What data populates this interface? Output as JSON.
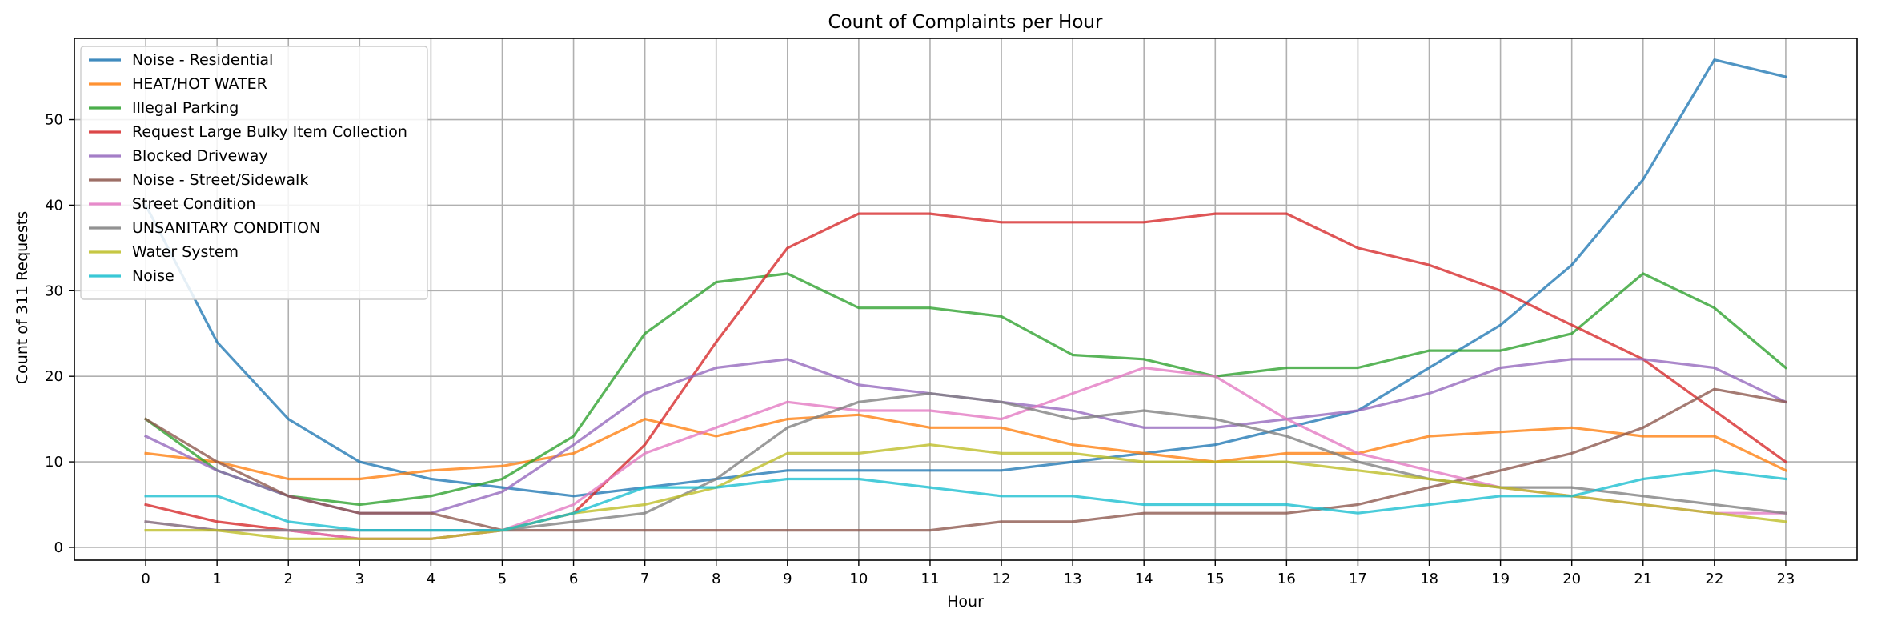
{
  "chart_data": {
    "type": "line",
    "title": "Count of Complaints per Hour",
    "xlabel": "Hour",
    "ylabel": "Count of 311 Requests",
    "x": [
      0,
      1,
      2,
      3,
      4,
      5,
      6,
      7,
      8,
      9,
      10,
      11,
      12,
      13,
      14,
      15,
      16,
      17,
      18,
      19,
      20,
      21,
      22,
      23
    ],
    "xlim": [
      -1,
      24
    ],
    "ylim": [
      -1.5,
      59.5
    ],
    "yticks": [
      0,
      10,
      20,
      30,
      40,
      50
    ],
    "grid": true,
    "legend_position": "top-left",
    "series": [
      {
        "name": "Noise - Residential",
        "color": "#1f77b4",
        "values": [
          40,
          24,
          15,
          10,
          8,
          7,
          6,
          7,
          8,
          9,
          9,
          9,
          9,
          10,
          11,
          12,
          14,
          16,
          21,
          26,
          33,
          43,
          57,
          55
        ]
      },
      {
        "name": "HEAT/HOT WATER",
        "color": "#ff7f0e",
        "values": [
          11,
          10,
          8,
          8,
          9,
          9.5,
          11,
          15,
          13,
          15,
          15.5,
          14,
          14,
          12,
          11,
          10,
          11,
          11,
          13,
          13.5,
          14,
          13,
          13,
          9
        ]
      },
      {
        "name": "Illegal Parking",
        "color": "#2ca02c",
        "values": [
          15,
          9,
          6,
          5,
          6,
          8,
          13,
          25,
          31,
          32,
          28,
          28,
          27,
          22.5,
          22,
          20,
          21,
          21,
          23,
          23,
          25,
          32,
          28,
          21
        ]
      },
      {
        "name": "Request Large Bulky Item Collection",
        "color": "#d62728",
        "values": [
          5,
          3,
          2,
          1,
          1,
          2,
          4,
          12,
          24,
          35,
          39,
          39,
          38,
          38,
          38,
          39,
          39,
          35,
          33,
          30,
          26,
          22,
          16,
          10
        ]
      },
      {
        "name": "Blocked Driveway",
        "color": "#9467bd",
        "values": [
          13,
          9,
          6,
          4,
          4,
          6.5,
          12,
          18,
          21,
          22,
          19,
          18,
          17,
          16,
          14,
          14,
          15,
          16,
          18,
          21,
          22,
          22,
          21,
          17
        ]
      },
      {
        "name": "Noise - Street/Sidewalk",
        "color": "#8c564b",
        "values": [
          15,
          10,
          6,
          4,
          4,
          2,
          2,
          2,
          2,
          2,
          2,
          2,
          3,
          3,
          4,
          4,
          4,
          5,
          7,
          9,
          11,
          14,
          18.5,
          17
        ]
      },
      {
        "name": "Street Condition",
        "color": "#e377c2",
        "values": [
          3,
          2,
          2,
          1,
          1,
          2,
          5,
          11,
          14,
          17,
          16,
          16,
          15,
          18,
          21,
          20,
          15,
          11,
          9,
          7,
          6,
          5,
          4,
          4
        ]
      },
      {
        "name": "UNSANITARY CONDITION",
        "color": "#7f7f7f",
        "values": [
          3,
          2,
          2,
          2,
          2,
          2,
          3,
          4,
          8,
          14,
          17,
          18,
          17,
          15,
          16,
          15,
          13,
          10,
          8,
          7,
          7,
          6,
          5,
          4
        ]
      },
      {
        "name": "Water System",
        "color": "#bcbd22",
        "values": [
          2,
          2,
          1,
          1,
          1,
          2,
          4,
          5,
          7,
          11,
          11,
          12,
          11,
          11,
          10,
          10,
          10,
          9,
          8,
          7,
          6,
          5,
          4,
          3
        ]
      },
      {
        "name": "Noise",
        "color": "#17becf",
        "values": [
          6,
          6,
          3,
          2,
          2,
          2,
          4,
          7,
          7,
          8,
          8,
          7,
          6,
          6,
          5,
          5,
          5,
          4,
          5,
          6,
          6,
          8,
          9,
          8
        ]
      }
    ]
  }
}
